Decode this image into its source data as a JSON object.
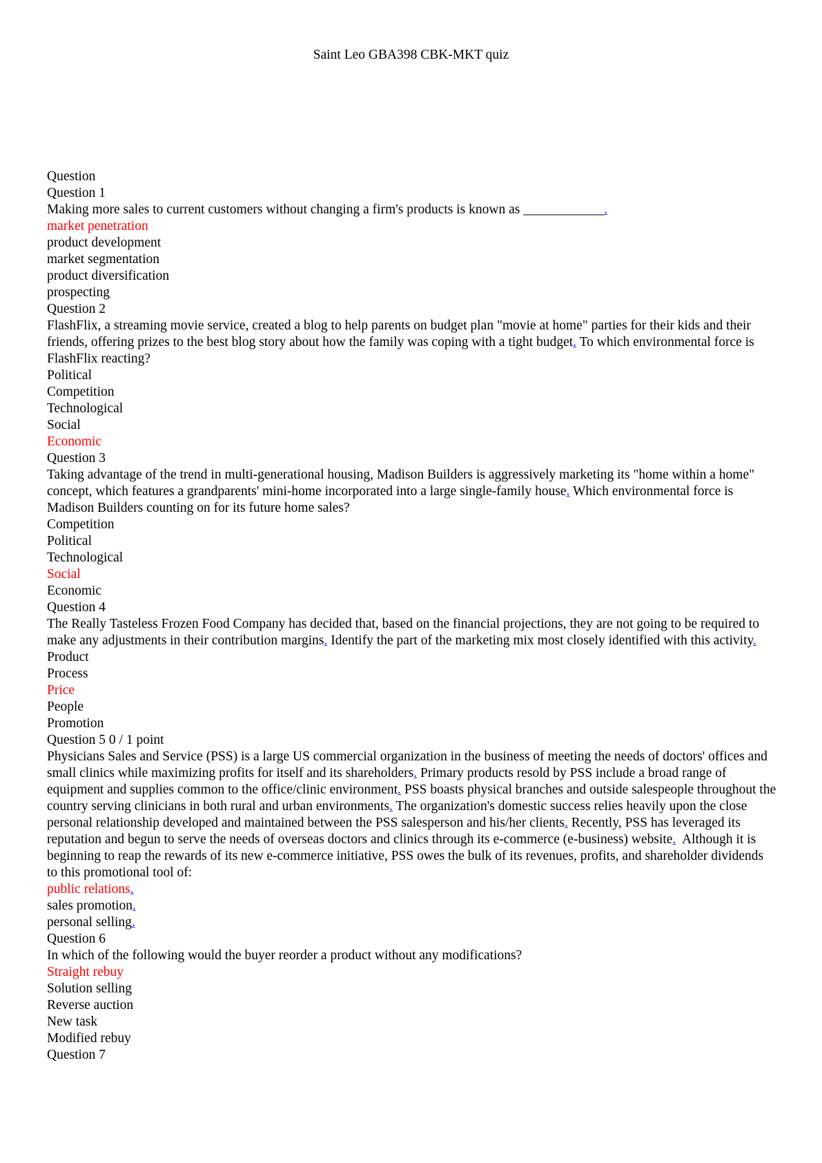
{
  "document": {
    "title": "Saint Leo GBA398 CBK-MKT quiz",
    "header_label": "Question"
  },
  "accent_colors": {
    "correct_answer": "#ff0000",
    "link_dot": "#1a1aff"
  },
  "questions": [
    {
      "label": "Question 1",
      "text": "Making more sales to current customers without changing a firm's products is known as ____________",
      "dot": ".",
      "options": [
        {
          "text": "market penetration"
        },
        {
          "text": "product development"
        },
        {
          "text": "market segmentation"
        },
        {
          "text": "product diversification"
        },
        {
          "text": "prospecting"
        }
      ]
    },
    {
      "label": "Question 2",
      "text_a": "FlashFlix, a streaming movie service, created a blog to help parents on budget plan \"movie at home\" parties for their kids and their friends, offering prizes to the best blog story about how the family was coping with a tight budget",
      "dot": ".",
      "text_b": " To which environmental force is FlashFlix reacting?",
      "options": [
        {
          "text": "Political"
        },
        {
          "text": "Competition"
        },
        {
          "text": "Technological"
        },
        {
          "text": "Social"
        },
        {
          "text": "Economic"
        }
      ]
    },
    {
      "label": "Question 3",
      "text_a": "Taking advantage of the trend in multi-generational housing, Madison Builders is aggressively marketing its \"home within a home\" concept, which features a grandparents' mini-home incorporated into a large single-family house",
      "dot": ".",
      "text_b": " Which environmental force is Madison Builders counting on for its future home sales?",
      "options": [
        {
          "text": "Competition"
        },
        {
          "text": "Political"
        },
        {
          "text": "Technological"
        },
        {
          "text": "Social"
        },
        {
          "text": "Economic"
        }
      ]
    },
    {
      "label": "Question 4",
      "text_a": "The Really Tasteless Frozen Food Company has decided that, based on the financial projections, they are not going to be required to make any adjustments in their contribution margins",
      "dot": ".",
      "text_b": " Identify the part of the marketing mix most closely identified with this activity",
      "options": [
        {
          "text": "Product"
        },
        {
          "text": "Process"
        },
        {
          "text": "Price"
        },
        {
          "text": "People"
        },
        {
          "text": "Promotion"
        }
      ]
    },
    {
      "label": "Question 5 0 / 1 point",
      "s1": "Physicians Sales and Service (PSS) is a large US commercial organization in the business of meeting the needs of doctors' offices and small clinics while maximizing profits for itself and its shareholders",
      "s2": " Primary products resold by PSS include a broad range of equipment and supplies common to the office/clinic environment",
      "s3": " PSS boasts physical branches and outside salespeople throughout the country serving clinicians in both rural and urban environments",
      "s4": " The organization's domestic success relies heavily upon the close personal relationship developed and maintained between the PSS salesperson and his/her clients",
      "s5": " Recently, PSS has leveraged its reputation and begun to serve the needs of overseas doctors and clinics through its e-commerce (e-business) website",
      "s6": "  Although it is beginning to reap the rewards of its new e-commerce initiative, PSS owes the bulk of its revenues, profits, and shareholder dividends to this promotional tool of:",
      "options": [
        {
          "text": "public relations"
        },
        {
          "text": "sales promotion"
        },
        {
          "text": "personal selling"
        }
      ]
    },
    {
      "label": "Question 6",
      "text": "In which of the following would the buyer reorder a product without any modifications?",
      "options": [
        {
          "text": "Straight rebuy"
        },
        {
          "text": "Solution selling"
        },
        {
          "text": "Reverse auction"
        },
        {
          "text": "New task"
        },
        {
          "text": "Modified rebuy"
        }
      ]
    },
    {
      "label": "Question 7"
    }
  ]
}
